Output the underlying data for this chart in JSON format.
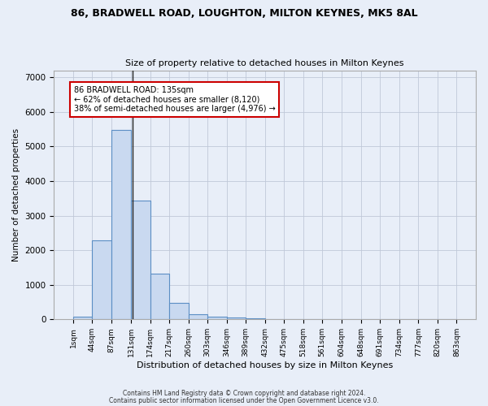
{
  "title1": "86, BRADWELL ROAD, LOUGHTON, MILTON KEYNES, MK5 8AL",
  "title2": "Size of property relative to detached houses in Milton Keynes",
  "xlabel": "Distribution of detached houses by size in Milton Keynes",
  "ylabel": "Number of detached properties",
  "footnote1": "Contains HM Land Registry data © Crown copyright and database right 2024.",
  "footnote2": "Contains public sector information licensed under the Open Government Licence v3.0.",
  "bar_edges": [
    1,
    44,
    87,
    131,
    174,
    217,
    260,
    303,
    346,
    389,
    432,
    475,
    518,
    561,
    604,
    648,
    691,
    734,
    777,
    820,
    863
  ],
  "bar_heights": [
    80,
    2280,
    5480,
    3430,
    1320,
    470,
    160,
    90,
    55,
    40,
    0,
    0,
    0,
    0,
    0,
    0,
    0,
    0,
    0,
    0
  ],
  "bar_color": "#c9d9f0",
  "bar_edge_color": "#5b8ec4",
  "bar_linewidth": 0.8,
  "vline_x": 135,
  "vline_color": "#222222",
  "vline_linewidth": 1.0,
  "annotation_text": "86 BRADWELL ROAD: 135sqm\n← 62% of detached houses are smaller (8,120)\n38% of semi-detached houses are larger (4,976) →",
  "annotation_box_color": "#ffffff",
  "annotation_box_edge_color": "#cc0000",
  "ylim": [
    0,
    7200
  ],
  "yticks": [
    0,
    1000,
    2000,
    3000,
    4000,
    5000,
    6000,
    7000
  ],
  "grid_color": "#c0c8d8",
  "background_color": "#e8eef8",
  "tick_labels": [
    "1sqm",
    "44sqm",
    "87sqm",
    "131sqm",
    "174sqm",
    "217sqm",
    "260sqm",
    "303sqm",
    "346sqm",
    "389sqm",
    "432sqm",
    "475sqm",
    "518sqm",
    "561sqm",
    "604sqm",
    "648sqm",
    "691sqm",
    "734sqm",
    "777sqm",
    "820sqm",
    "863sqm"
  ]
}
